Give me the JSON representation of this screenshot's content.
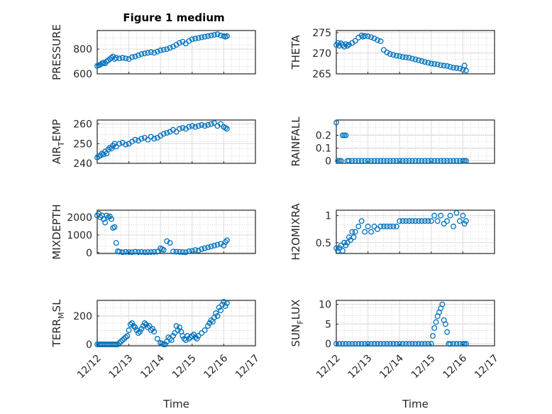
{
  "figure": {
    "title": "Figure 1 medium",
    "colors": {
      "marker": "#0072BD",
      "axis": "#262626",
      "grid": "#dcdcdc",
      "minor_grid": "#bdbdbd"
    }
  },
  "chart_data": [
    {
      "type": "scatter",
      "ylabel": "PRESSURE",
      "xlabel": "",
      "xlim": [
        0,
        5
      ],
      "ylim": [
        600,
        950
      ],
      "yticks": [
        600,
        800
      ],
      "ytick_labels": [
        "600",
        "800"
      ],
      "x": [
        0.0,
        0.05,
        0.1,
        0.15,
        0.2,
        0.25,
        0.3,
        0.35,
        0.4,
        0.45,
        0.5,
        0.55,
        0.6,
        0.7,
        0.8,
        0.9,
        1.0,
        1.1,
        1.2,
        1.3,
        1.4,
        1.5,
        1.6,
        1.7,
        1.8,
        1.9,
        2.0,
        2.1,
        2.2,
        2.3,
        2.4,
        2.5,
        2.6,
        2.7,
        2.8,
        2.9,
        3.0,
        3.1,
        3.2,
        3.3,
        3.4,
        3.5,
        3.6,
        3.7,
        3.8,
        3.9,
        4.0,
        4.05,
        4.1
      ],
      "y": [
        665,
        670,
        675,
        685,
        690,
        685,
        700,
        710,
        720,
        730,
        740,
        720,
        730,
        725,
        730,
        725,
        720,
        735,
        740,
        750,
        760,
        765,
        770,
        775,
        770,
        780,
        790,
        795,
        800,
        810,
        820,
        835,
        850,
        860,
        845,
        865,
        880,
        885,
        890,
        895,
        900,
        905,
        910,
        915,
        920,
        910,
        905,
        900,
        905
      ]
    },
    {
      "type": "scatter",
      "ylabel": "THETA",
      "xlabel": "",
      "xlim": [
        0,
        5
      ],
      "ylim": [
        265,
        275.5
      ],
      "yticks": [
        265,
        270,
        275
      ],
      "ytick_labels": [
        "265",
        "270",
        "275"
      ],
      "x": [
        0.0,
        0.05,
        0.1,
        0.15,
        0.2,
        0.25,
        0.3,
        0.35,
        0.4,
        0.5,
        0.6,
        0.7,
        0.8,
        0.85,
        0.9,
        1.0,
        1.1,
        1.2,
        1.3,
        1.4,
        1.5,
        1.6,
        1.7,
        1.8,
        1.9,
        2.0,
        2.1,
        2.2,
        2.3,
        2.4,
        2.5,
        2.6,
        2.7,
        2.8,
        2.9,
        3.0,
        3.1,
        3.2,
        3.3,
        3.4,
        3.5,
        3.6,
        3.7,
        3.8,
        3.9,
        4.0,
        4.05,
        4.1
      ],
      "y": [
        272.0,
        272.5,
        271.8,
        272.4,
        272.0,
        271.6,
        272.2,
        271.8,
        272.1,
        272.5,
        273.0,
        273.8,
        274.3,
        274.0,
        274.2,
        274.1,
        273.9,
        273.6,
        273.2,
        272.9,
        270.8,
        270.2,
        269.8,
        269.6,
        269.4,
        269.3,
        269.1,
        269.0,
        268.9,
        268.7,
        268.5,
        268.3,
        268.1,
        267.9,
        267.7,
        267.5,
        267.4,
        267.3,
        267.1,
        267.0,
        266.9,
        266.7,
        266.5,
        266.4,
        266.3,
        266.0,
        267.0,
        265.8
      ]
    },
    {
      "type": "scatter",
      "ylabel": "AIR_TEMP",
      "xlabel": "",
      "xlim": [
        0,
        5
      ],
      "ylim": [
        240,
        262
      ],
      "yticks": [
        240,
        250,
        260
      ],
      "ytick_labels": [
        "240",
        "250",
        "260"
      ],
      "x": [
        0.0,
        0.05,
        0.1,
        0.15,
        0.2,
        0.25,
        0.3,
        0.35,
        0.4,
        0.45,
        0.5,
        0.55,
        0.6,
        0.7,
        0.8,
        0.9,
        1.0,
        1.1,
        1.2,
        1.3,
        1.4,
        1.5,
        1.6,
        1.7,
        1.8,
        1.9,
        2.0,
        2.1,
        2.2,
        2.3,
        2.4,
        2.5,
        2.6,
        2.7,
        2.8,
        2.9,
        3.0,
        3.1,
        3.2,
        3.3,
        3.4,
        3.5,
        3.6,
        3.7,
        3.8,
        3.9,
        4.0,
        4.05,
        4.1
      ],
      "y": [
        243,
        243.5,
        244,
        245,
        244.5,
        246,
        245,
        247,
        248,
        247.5,
        249,
        250,
        248.5,
        250,
        250.5,
        249.5,
        250,
        251,
        252,
        251.5,
        252.5,
        253,
        252,
        253.5,
        252.5,
        253,
        254,
        255,
        255.5,
        256,
        257,
        256,
        257.5,
        258,
        257.5,
        258.5,
        259,
        258.5,
        259,
        259.5,
        259,
        259.5,
        260,
        260.5,
        259,
        260,
        258.5,
        258,
        257.5
      ]
    },
    {
      "type": "scatter",
      "ylabel": "RAINFALL",
      "xlabel": "",
      "xlim": [
        0,
        5
      ],
      "ylim": [
        -0.02,
        0.32
      ],
      "yticks": [
        0,
        0.1,
        0.2
      ],
      "ytick_labels": [
        "0",
        "0.1",
        "0.2"
      ],
      "x": [
        0.0,
        0.05,
        0.1,
        0.15,
        0.2,
        0.25,
        0.3,
        0.35,
        0.4,
        0.5,
        0.6,
        0.7,
        0.8,
        0.9,
        1.0,
        1.1,
        1.2,
        1.3,
        1.4,
        1.5,
        1.6,
        1.7,
        1.8,
        1.9,
        2.0,
        2.1,
        2.2,
        2.3,
        2.4,
        2.5,
        2.6,
        2.7,
        2.8,
        2.9,
        3.0,
        3.1,
        3.2,
        3.3,
        3.4,
        3.5,
        3.6,
        3.7,
        3.8,
        3.9,
        4.0,
        4.05,
        4.1
      ],
      "y": [
        0.3,
        0.0,
        0.0,
        0.0,
        0.2,
        0.2,
        0.2,
        0.0,
        0.0,
        0,
        0,
        0,
        0,
        0,
        0,
        0,
        0,
        0,
        0,
        0,
        0,
        0,
        0,
        0,
        0,
        0,
        0,
        0,
        0,
        0,
        0,
        0,
        0,
        0,
        0,
        0,
        0,
        0,
        0,
        0,
        0,
        0,
        0,
        0,
        0,
        0,
        0
      ]
    },
    {
      "type": "scatter",
      "ylabel": "MIXDEPTH",
      "xlabel": "",
      "xlim": [
        0,
        5
      ],
      "ylim": [
        -50,
        2400
      ],
      "yticks": [
        0,
        1000,
        2000
      ],
      "ytick_labels": [
        "0",
        "1000",
        "2000"
      ],
      "x": [
        0.0,
        0.05,
        0.1,
        0.15,
        0.2,
        0.25,
        0.3,
        0.35,
        0.4,
        0.45,
        0.5,
        0.55,
        0.6,
        0.65,
        0.7,
        0.8,
        0.9,
        1.0,
        1.1,
        1.2,
        1.3,
        1.4,
        1.5,
        1.6,
        1.7,
        1.8,
        1.9,
        2.0,
        2.05,
        2.1,
        2.2,
        2.3,
        2.4,
        2.5,
        2.6,
        2.7,
        2.8,
        2.9,
        3.0,
        3.1,
        3.2,
        3.3,
        3.4,
        3.5,
        3.6,
        3.7,
        3.8,
        3.9,
        4.0,
        4.05,
        4.1
      ],
      "y": [
        2100,
        2200,
        2000,
        2100,
        1900,
        1700,
        2100,
        2000,
        2050,
        1900,
        1400,
        1450,
        550,
        80,
        50,
        20,
        40,
        30,
        20,
        50,
        30,
        40,
        20,
        30,
        30,
        40,
        50,
        250,
        200,
        150,
        650,
        550,
        60,
        50,
        40,
        30,
        20,
        80,
        100,
        150,
        120,
        200,
        250,
        300,
        350,
        400,
        450,
        500,
        400,
        600,
        700
      ]
    },
    {
      "type": "scatter",
      "ylabel": "H2OMIXRA",
      "xlabel": "",
      "xlim": [
        0,
        5
      ],
      "ylim": [
        0.3,
        1.1
      ],
      "yticks": [
        0.5,
        1
      ],
      "ytick_labels": [
        "0.5",
        "1"
      ],
      "x": [
        0.0,
        0.05,
        0.1,
        0.15,
        0.2,
        0.25,
        0.3,
        0.35,
        0.4,
        0.45,
        0.5,
        0.55,
        0.6,
        0.7,
        0.8,
        0.9,
        1.0,
        1.1,
        1.2,
        1.3,
        1.4,
        1.5,
        1.6,
        1.7,
        1.8,
        1.9,
        2.0,
        2.1,
        2.2,
        2.3,
        2.4,
        2.5,
        2.6,
        2.7,
        2.8,
        2.9,
        3.0,
        3.1,
        3.2,
        3.3,
        3.4,
        3.5,
        3.6,
        3.7,
        3.8,
        3.9,
        4.0,
        4.05,
        4.1
      ],
      "y": [
        0.4,
        0.35,
        0.4,
        0.45,
        0.35,
        0.5,
        0.45,
        0.5,
        0.6,
        0.55,
        0.7,
        0.6,
        0.7,
        0.8,
        0.9,
        0.7,
        0.8,
        0.7,
        0.8,
        0.75,
        0.8,
        0.8,
        0.8,
        0.8,
        0.8,
        0.8,
        0.9,
        0.9,
        0.9,
        0.9,
        0.9,
        0.9,
        0.9,
        0.9,
        0.9,
        0.9,
        0.9,
        1.0,
        0.9,
        1.0,
        0.85,
        0.9,
        1.0,
        0.8,
        1.05,
        0.9,
        1.0,
        0.85,
        0.9
      ]
    },
    {
      "type": "scatter",
      "ylabel": "TERR_MSL",
      "xlabel": "Time",
      "xlim": [
        0,
        5
      ],
      "ylim": [
        -10,
        310
      ],
      "yticks": [
        0,
        200
      ],
      "ytick_labels": [
        "0",
        "200"
      ],
      "xticks": [
        0,
        1,
        2,
        3,
        4,
        5
      ],
      "xtick_labels": [
        "12/12",
        "12/13",
        "12/14",
        "12/15",
        "12/16",
        "12/17"
      ],
      "x": [
        0.0,
        0.05,
        0.1,
        0.15,
        0.2,
        0.25,
        0.3,
        0.35,
        0.4,
        0.45,
        0.5,
        0.55,
        0.6,
        0.65,
        0.7,
        0.75,
        0.8,
        0.85,
        0.9,
        0.95,
        1.0,
        1.05,
        1.1,
        1.15,
        1.2,
        1.25,
        1.3,
        1.35,
        1.4,
        1.45,
        1.5,
        1.55,
        1.6,
        1.65,
        1.7,
        1.75,
        1.8,
        1.9,
        2.0,
        2.05,
        2.1,
        2.15,
        2.2,
        2.25,
        2.3,
        2.35,
        2.4,
        2.45,
        2.5,
        2.55,
        2.6,
        2.65,
        2.7,
        2.75,
        2.8,
        2.85,
        2.9,
        2.95,
        3.0,
        3.05,
        3.1,
        3.15,
        3.2,
        3.3,
        3.4,
        3.5,
        3.55,
        3.6,
        3.65,
        3.7,
        3.75,
        3.8,
        3.85,
        3.9,
        3.95,
        4.0,
        4.05,
        4.1
      ],
      "y": [
        0,
        0,
        0,
        0,
        0,
        0,
        0,
        0,
        0,
        0,
        0,
        0,
        0,
        0,
        10,
        20,
        30,
        40,
        50,
        60,
        100,
        140,
        150,
        130,
        120,
        100,
        80,
        90,
        110,
        130,
        150,
        140,
        120,
        130,
        100,
        110,
        90,
        40,
        10,
        5,
        0,
        0,
        20,
        50,
        40,
        30,
        60,
        80,
        130,
        100,
        120,
        90,
        60,
        40,
        30,
        60,
        40,
        50,
        60,
        70,
        50,
        40,
        60,
        80,
        100,
        130,
        150,
        170,
        160,
        190,
        220,
        200,
        260,
        240,
        280,
        300,
        270,
        290
      ]
    },
    {
      "type": "scatter",
      "ylabel": "SUN_FLUX",
      "xlabel": "Time",
      "xlim": [
        0,
        5
      ],
      "ylim": [
        -0.5,
        11
      ],
      "yticks": [
        0,
        5,
        10
      ],
      "ytick_labels": [
        "0",
        "5",
        "10"
      ],
      "xticks": [
        0,
        1,
        2,
        3,
        4,
        5
      ],
      "xtick_labels": [
        "12/12",
        "12/13",
        "12/14",
        "12/15",
        "12/16",
        "12/17"
      ],
      "x": [
        0.0,
        0.1,
        0.2,
        0.3,
        0.4,
        0.5,
        0.6,
        0.7,
        0.8,
        0.9,
        1.0,
        1.1,
        1.2,
        1.3,
        1.4,
        1.5,
        1.6,
        1.7,
        1.8,
        1.9,
        2.0,
        2.1,
        2.2,
        2.3,
        2.4,
        2.5,
        2.6,
        2.7,
        2.8,
        2.9,
        3.0,
        3.05,
        3.1,
        3.15,
        3.2,
        3.25,
        3.3,
        3.35,
        3.4,
        3.45,
        3.5,
        3.55,
        3.6,
        3.7,
        3.8,
        3.9,
        4.0,
        4.05,
        4.1
      ],
      "y": [
        0,
        0,
        0,
        0,
        0,
        0,
        0,
        0,
        0,
        0,
        0,
        0,
        0,
        0,
        0,
        0,
        0,
        0,
        0,
        0,
        0,
        0,
        0,
        0,
        0,
        0,
        0,
        0,
        0,
        0,
        0,
        2,
        4,
        5.5,
        7,
        8,
        9,
        10,
        6,
        5,
        3,
        0,
        0,
        0,
        0,
        0,
        0,
        0,
        0
      ]
    }
  ]
}
